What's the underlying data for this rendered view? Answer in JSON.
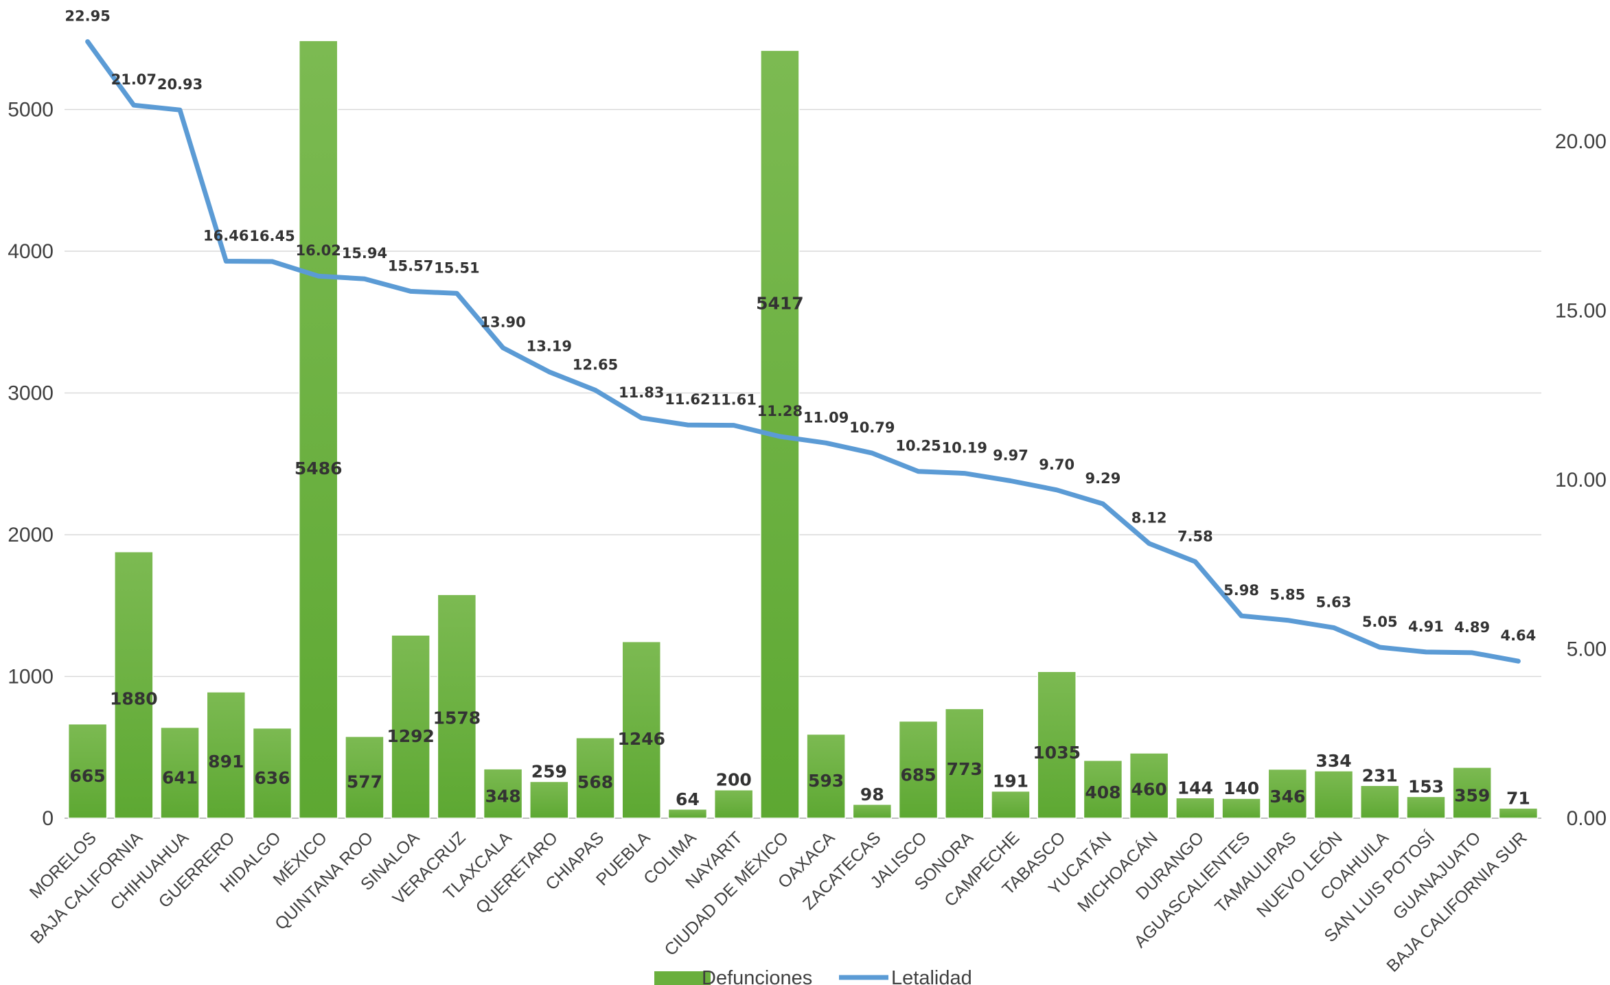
{
  "chart_data": {
    "type": "bar",
    "categories": [
      "MORELOS",
      "BAJA CALIFORNIA",
      "CHIHUAHUA",
      "GUERRERO",
      "HIDALGO",
      "MÉXICO",
      "QUINTANA ROO",
      "SINALOA",
      "VERACRUZ",
      "TLAXCALA",
      "QUERETARO",
      "CHIAPAS",
      "PUEBLA",
      "COLIMA",
      "NAYARIT",
      "CIUDAD DE MÉXICO",
      "OAXACA",
      "ZACATECAS",
      "JALISCO",
      "SONORA",
      "CAMPECHE",
      "TABASCO",
      "YUCATÁN",
      "MICHOACÁN",
      "DURANGO",
      "AGUASCALIENTES",
      "TAMAULIPAS",
      "NUEVO LEÓN",
      "COAHUILA",
      "SAN LUIS POTOSÍ",
      "GUANAJUATO",
      "BAJA CALIFORNIA SUR"
    ],
    "series": [
      {
        "name": "Defunciones",
        "type": "bar",
        "axis": "left",
        "color": "#6aaf3d",
        "values": [
          665,
          1880,
          641,
          891,
          636,
          5486,
          577,
          1292,
          1578,
          348,
          259,
          568,
          1246,
          64,
          200,
          5417,
          593,
          98,
          685,
          773,
          191,
          1035,
          408,
          460,
          144,
          140,
          346,
          334,
          231,
          153,
          359,
          71
        ],
        "labels": [
          "665",
          "1880",
          "641",
          "891",
          "636",
          "5486",
          "577",
          "1292",
          "1578",
          "348",
          "259",
          "568",
          "1246",
          "64",
          "200",
          "5417",
          "593",
          "98",
          "685",
          "773",
          "191",
          "1035",
          "408",
          "460",
          "144",
          "140",
          "346",
          "334",
          "231",
          "153",
          "359",
          "71"
        ]
      },
      {
        "name": "Letalidad",
        "type": "line",
        "axis": "right",
        "color": "#5b9bd5",
        "values": [
          22.95,
          21.07,
          20.93,
          16.46,
          16.45,
          16.02,
          15.94,
          15.57,
          15.51,
          13.9,
          13.19,
          12.65,
          11.83,
          11.62,
          11.61,
          11.28,
          11.09,
          10.79,
          10.25,
          10.19,
          9.97,
          9.7,
          9.29,
          8.12,
          7.58,
          5.98,
          5.85,
          5.63,
          5.05,
          4.91,
          4.89,
          4.64
        ],
        "labels": [
          "22.95",
          "21.07",
          "20.93",
          "16.46",
          "16.45",
          "16.02",
          "15.94",
          "15.57",
          "15.51",
          "13.90",
          "13.19",
          "12.65",
          "11.83",
          "11.62",
          "11.61",
          "11.28",
          "11.09",
          "10.79",
          "10.25",
          "10.19",
          "9.97",
          "9.70",
          "9.29",
          "8.12",
          "7.58",
          "5.98",
          "5.85",
          "5.63",
          "5.05",
          "4.91",
          "4.89",
          "4.64"
        ]
      }
    ],
    "y_left": {
      "ylim": [
        0,
        5800
      ],
      "ticks": [
        0,
        1000,
        2000,
        3000,
        4000,
        5000
      ],
      "tick_labels": [
        "0",
        "1000",
        "2000",
        "3000",
        "4000",
        "5000"
      ]
    },
    "y_right": {
      "ylim": [
        0,
        24.2
      ],
      "ticks": [
        0,
        5,
        10,
        15,
        20
      ],
      "tick_labels": [
        "0.00",
        "5.00",
        "10.00",
        "15.00",
        "20.00"
      ]
    },
    "grid": true,
    "legend": {
      "position": "bottom",
      "items": [
        {
          "label": "Defunciones",
          "marker": "bar",
          "color": "#6aaf3d"
        },
        {
          "label": "Letalidad",
          "marker": "line",
          "color": "#5b9bd5"
        }
      ]
    }
  }
}
